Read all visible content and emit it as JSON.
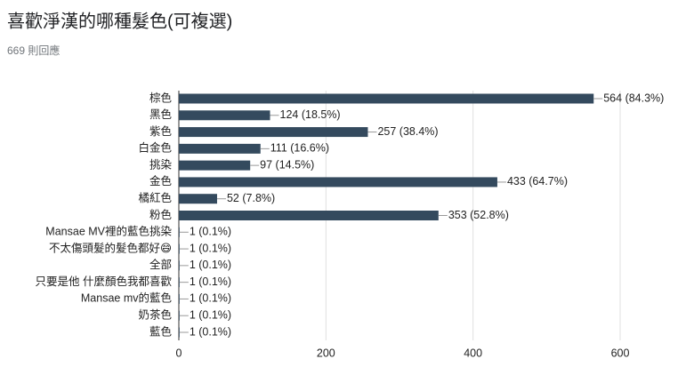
{
  "chart_data": {
    "type": "bar",
    "orientation": "horizontal",
    "title": "喜歡淨漢的哪種髮色(可複選)",
    "subtitle": "669 則回應",
    "categories": [
      "棕色",
      "黑色",
      "紫色",
      "白金色",
      "挑染",
      "金色",
      "橘紅色",
      "粉色",
      "Mansae MV裡的藍色挑染",
      "不太傷頭髮的髮色都好😄",
      "全部",
      "只要是他 什麼顏色我都喜歡",
      "Mansae mv的藍色",
      "奶茶色",
      "藍色"
    ],
    "values": [
      564,
      124,
      257,
      111,
      97,
      433,
      52,
      353,
      1,
      1,
      1,
      1,
      1,
      1,
      1
    ],
    "value_labels": [
      "564 (84.3%)",
      "124 (18.5%)",
      "257 (38.4%)",
      "111 (16.6%)",
      "97 (14.5%)",
      "433 (64.7%)",
      "52 (7.8%)",
      "353 (52.8%)",
      "1 (0.1%)",
      "1 (0.1%)",
      "1 (0.1%)",
      "1 (0.1%)",
      "1 (0.1%)",
      "1 (0.1%)",
      "1 (0.1%)"
    ],
    "color": "#344a5e",
    "xlim": [
      0,
      600
    ],
    "xticks": [
      0,
      200,
      400,
      600
    ],
    "grid": true
  }
}
